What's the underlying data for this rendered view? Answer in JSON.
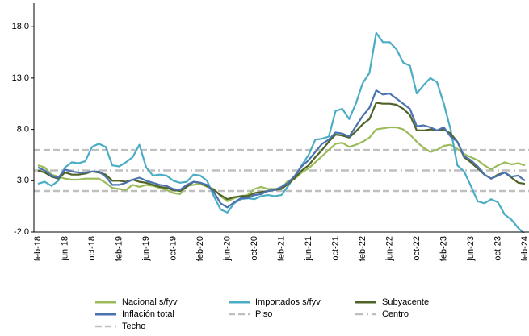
{
  "chart_data": {
    "type": "line",
    "categories": [
      "feb-18",
      null,
      null,
      null,
      "jun-18",
      null,
      null,
      null,
      "oct-18",
      null,
      null,
      null,
      "feb-19",
      null,
      null,
      null,
      "jun-19",
      null,
      null,
      null,
      "oct-19",
      null,
      null,
      null,
      "feb-20",
      null,
      null,
      null,
      "jun-20",
      null,
      null,
      null,
      "oct-20",
      null,
      null,
      null,
      "feb-21",
      null,
      null,
      null,
      "jun-21",
      null,
      null,
      null,
      "oct-21",
      null,
      null,
      null,
      "feb-22",
      null,
      null,
      null,
      "jun-22",
      null,
      null,
      null,
      "oct-22",
      null,
      null,
      null,
      "feb-23",
      null,
      null,
      null,
      "jun-23",
      null,
      null,
      null,
      "oct-23",
      null,
      null,
      null,
      "feb-24"
    ],
    "series": [
      {
        "name": "Nacional s/fyv",
        "color": "#9bbb59",
        "values": [
          4.5,
          4.3,
          3.6,
          3.4,
          3.2,
          3.1,
          3.1,
          3.2,
          3.2,
          3.2,
          2.8,
          2.3,
          2.2,
          2.1,
          2.6,
          2.4,
          2.6,
          2.5,
          2.3,
          2.1,
          1.8,
          1.7,
          2.5,
          2.6,
          2.7,
          2.4,
          2.2,
          1.5,
          1.0,
          1.3,
          1.5,
          1.6,
          2.2,
          2.4,
          2.2,
          2.2,
          2.3,
          3.0,
          3.2,
          3.8,
          4.2,
          4.8,
          5.4,
          6.0,
          6.6,
          6.7,
          6.3,
          6.5,
          6.8,
          7.2,
          8.0,
          8.1,
          8.2,
          8.2,
          8.0,
          7.5,
          6.8,
          6.2,
          5.8,
          6.0,
          6.4,
          6.5,
          6.1,
          5.6,
          5.3,
          5.0,
          4.5,
          4.1,
          4.5,
          4.8,
          4.6,
          4.7,
          4.5
        ]
      },
      {
        "name": "Importados s/fyv",
        "color": "#4bacc6",
        "values": [
          2.7,
          2.9,
          2.5,
          3.0,
          4.3,
          4.8,
          4.7,
          4.9,
          6.3,
          6.6,
          6.3,
          4.5,
          4.4,
          4.8,
          5.3,
          6.5,
          4.3,
          3.5,
          3.6,
          3.5,
          3.0,
          2.8,
          2.9,
          3.6,
          3.5,
          3.0,
          1.5,
          0.2,
          -0.1,
          0.8,
          1.2,
          1.3,
          1.2,
          1.5,
          1.6,
          1.5,
          1.6,
          2.5,
          3.5,
          4.5,
          5.5,
          7.0,
          7.1,
          7.3,
          9.8,
          10.0,
          9.0,
          10.5,
          12.5,
          13.5,
          17.4,
          16.5,
          16.5,
          15.8,
          14.5,
          14.2,
          11.5,
          12.3,
          13.0,
          12.6,
          10.5,
          8.0,
          4.5,
          3.9,
          2.5,
          1.0,
          0.8,
          1.2,
          0.9,
          -0.3,
          -0.8,
          -1.6,
          -2.2
        ]
      },
      {
        "name": "Subyacente",
        "color": "#4f6228",
        "values": [
          4.0,
          3.8,
          3.4,
          3.2,
          3.8,
          3.6,
          3.6,
          3.7,
          3.9,
          3.8,
          3.6,
          3.0,
          3.0,
          2.9,
          3.1,
          2.9,
          2.8,
          2.6,
          2.4,
          2.3,
          2.1,
          2.0,
          2.4,
          2.9,
          2.8,
          2.5,
          2.1,
          1.6,
          1.2,
          1.4,
          1.5,
          1.5,
          1.8,
          1.9,
          2.0,
          2.1,
          2.2,
          2.7,
          3.3,
          4.0,
          4.5,
          5.3,
          6.0,
          6.8,
          7.5,
          7.4,
          7.2,
          7.8,
          8.5,
          9.0,
          10.6,
          10.5,
          10.5,
          10.4,
          10.0,
          9.4,
          7.9,
          7.9,
          8.0,
          7.9,
          8.0,
          7.6,
          6.8,
          5.3,
          4.8,
          4.2,
          3.6,
          3.2,
          3.6,
          3.8,
          3.3,
          2.8,
          2.7
        ]
      },
      {
        "name": "Inflación total",
        "color": "#4a72b0",
        "values": [
          4.3,
          4.0,
          3.5,
          3.3,
          4.1,
          3.9,
          3.8,
          3.8,
          3.9,
          3.9,
          3.4,
          2.6,
          2.6,
          2.8,
          3.1,
          3.3,
          3.0,
          2.8,
          2.6,
          2.5,
          2.2,
          2.1,
          2.6,
          2.9,
          2.8,
          2.6,
          1.9,
          0.8,
          0.4,
          0.9,
          1.3,
          1.3,
          1.6,
          1.7,
          2.0,
          2.1,
          2.4,
          2.8,
          3.5,
          4.4,
          5.0,
          5.8,
          6.6,
          7.0,
          7.7,
          7.6,
          7.3,
          8.3,
          9.3,
          10.1,
          11.8,
          11.4,
          11.5,
          11.0,
          10.5,
          10.0,
          8.3,
          8.4,
          8.2,
          7.9,
          8.2,
          7.3,
          6.8,
          5.4,
          5.0,
          4.4,
          3.6,
          3.2,
          3.5,
          3.8,
          3.4,
          3.5,
          3.0
        ]
      },
      {
        "name": "Piso",
        "color": "#bfbfbf",
        "style": "dashed",
        "value": 2
      },
      {
        "name": "Centro",
        "color": "#bfbfbf",
        "style": "dashdot",
        "value": 4
      },
      {
        "name": "Techo",
        "color": "#bfbfbf",
        "style": "dashed",
        "value": 6
      }
    ],
    "ylim": [
      -2,
      20
    ],
    "yticks": [
      {
        "value": -2,
        "label": "-2,0"
      },
      {
        "value": 3,
        "label": "3,0"
      },
      {
        "value": 8,
        "label": "8,0"
      },
      {
        "value": 13,
        "label": "13,0"
      },
      {
        "value": 18,
        "label": "18,0"
      }
    ]
  }
}
